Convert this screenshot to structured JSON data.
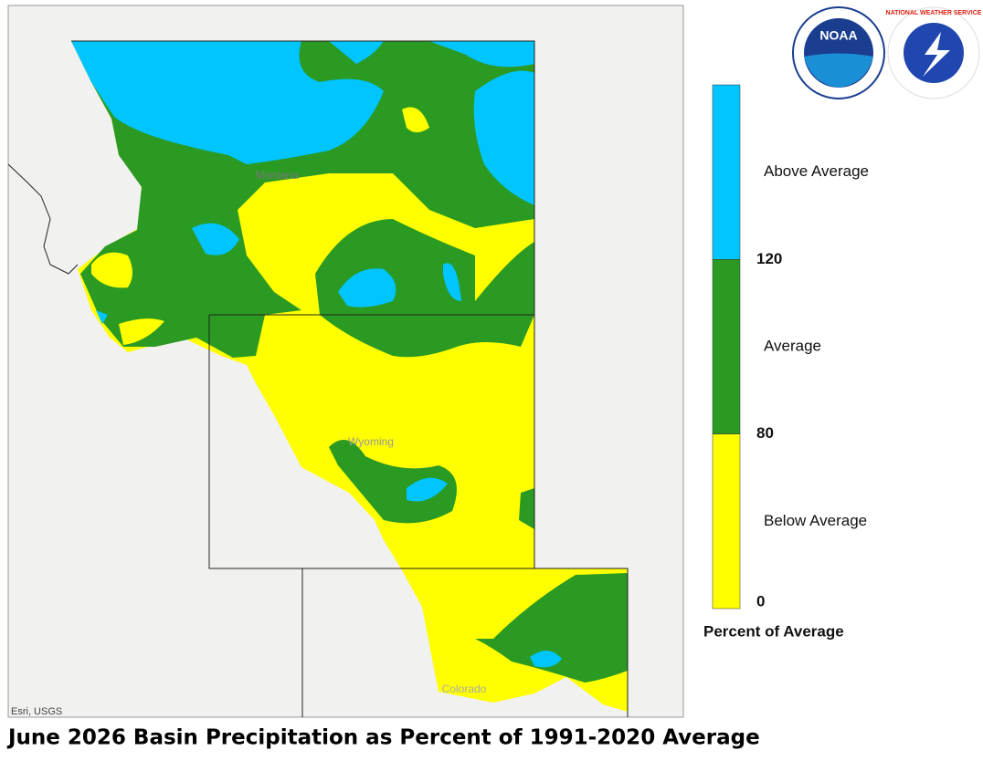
{
  "title": "June 2026 Basin Precipitation as Percent of 1991-2020 Average",
  "map": {
    "labels": [
      "Montana",
      "Wyoming",
      "Colorado"
    ],
    "attribution": "Esri, USGS"
  },
  "logos": {
    "noaa": "NOAA",
    "nws": "NATIONAL WEATHER SERVICE"
  },
  "legend": {
    "title": "Percent of Average",
    "classes": [
      {
        "label": "Above Average",
        "color": "#00c5ff"
      },
      {
        "label": "Average",
        "color": "#2b9a22"
      },
      {
        "label": "Below Average",
        "color": "#ffff00"
      }
    ],
    "breaks": [
      120,
      80,
      0
    ]
  }
}
